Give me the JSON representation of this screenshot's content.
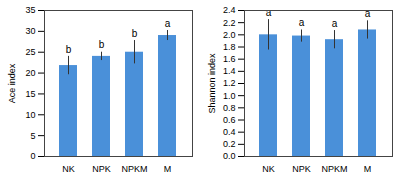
{
  "chart_data": [
    {
      "type": "bar",
      "ylabel": "Ace index",
      "categories": [
        "NK",
        "NPK",
        "NPKM",
        "M"
      ],
      "values": [
        21.8,
        24.0,
        25.0,
        29.0
      ],
      "errors": [
        2.2,
        1.0,
        2.8,
        1.2
      ],
      "letters": [
        "b",
        "b",
        "b",
        "a"
      ],
      "color": "#4a90d9",
      "ylim": [
        0,
        35
      ],
      "yticks": [
        0,
        5,
        10,
        15,
        20,
        25,
        30,
        35
      ]
    },
    {
      "type": "bar",
      "ylabel": "Shannon index",
      "categories": [
        "NK",
        "NPK",
        "NPKM",
        "M"
      ],
      "values": [
        2.0,
        1.98,
        1.92,
        2.08
      ],
      "errors": [
        0.25,
        0.1,
        0.15,
        0.15
      ],
      "letters": [
        "a",
        "a",
        "a",
        "a"
      ],
      "color": "#4a90d9",
      "ylim": [
        0,
        2.4
      ],
      "yticks": [
        0,
        0.2,
        0.4,
        0.6,
        0.8,
        1,
        1.2,
        1.4,
        1.6,
        1.8,
        2,
        2.2,
        2.4
      ]
    }
  ]
}
